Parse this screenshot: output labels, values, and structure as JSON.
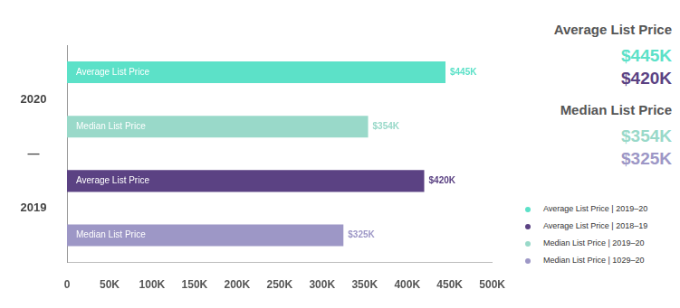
{
  "chart_data": {
    "type": "bar",
    "orientation": "horizontal",
    "categories": [
      "Average List Price",
      "Median List Price",
      "Average List Price",
      "Median List Price"
    ],
    "series": [
      {
        "name": "Average List Price  |  2019–20",
        "color": "#5ce1c8",
        "values": [
          445000,
          null,
          null,
          null
        ],
        "value_labels": [
          "$445K",
          null,
          null,
          null
        ]
      },
      {
        "name": "Average List Price  |  2018–19",
        "color": "#5b4283",
        "values": [
          null,
          null,
          420000,
          null
        ],
        "value_labels": [
          null,
          null,
          "$420K",
          null
        ]
      },
      {
        "name": "Median List Price | 2019–20",
        "color": "#99d9c9",
        "values": [
          null,
          354000,
          null,
          null
        ],
        "value_labels": [
          null,
          "$354K",
          null,
          null
        ]
      },
      {
        "name": "Median List Price | 1029–20",
        "color": "#9d97c6",
        "values": [
          null,
          null,
          null,
          325000
        ],
        "value_labels": [
          null,
          null,
          null,
          "$325K"
        ]
      }
    ],
    "annotations": [
      "2020",
      "—",
      "2019"
    ],
    "xlim": [
      0,
      500000
    ],
    "xticks": [
      {
        "value": 0,
        "label": "0"
      },
      {
        "value": 50000,
        "label": "50K"
      },
      {
        "value": 100000,
        "label": "100K"
      },
      {
        "value": 150000,
        "label": "150K"
      },
      {
        "value": 200000,
        "label": "200K"
      },
      {
        "value": 250000,
        "label": "250K"
      },
      {
        "value": 300000,
        "label": "300K"
      },
      {
        "value": 350000,
        "label": "350K"
      },
      {
        "value": 400000,
        "label": "400K"
      },
      {
        "value": 450000,
        "label": "450K"
      },
      {
        "value": 500000,
        "label": "500K"
      }
    ],
    "grid": false,
    "data_labels": true,
    "tick_labels": "x",
    "legend": "lower right"
  },
  "side_panel": [
    {
      "title": "Average List Price",
      "items": [
        {
          "text": "$445K",
          "color": "#5ce1c8"
        },
        {
          "text": "$420K",
          "color": "#5b4283"
        }
      ]
    },
    {
      "title": "Median List Price",
      "items": [
        {
          "text": "$354K",
          "color": "#99d9c9"
        },
        {
          "text": "$325K",
          "color": "#9d97c6"
        }
      ]
    }
  ]
}
